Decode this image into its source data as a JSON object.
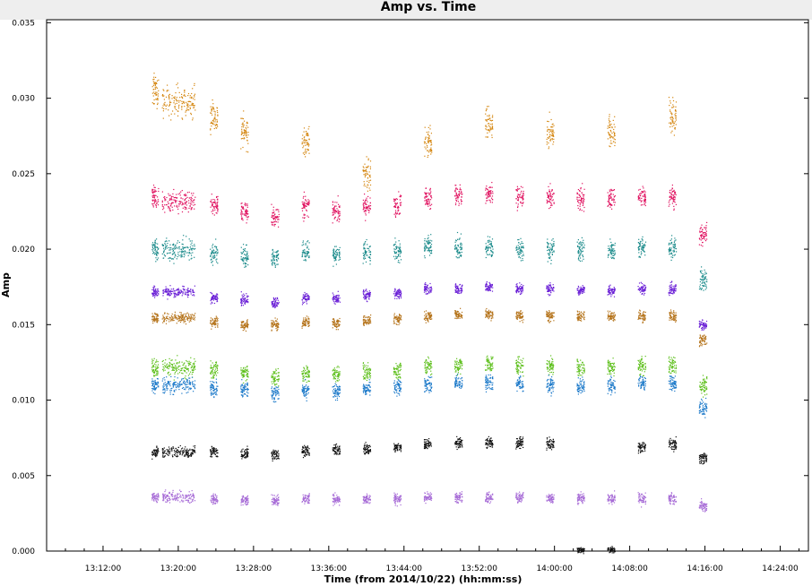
{
  "chart_data": {
    "type": "scatter",
    "title": "Amp vs. Time",
    "xlabel": "Time (from 2014/10/22) (hh:mm:ss)",
    "ylabel": "Amp",
    "ylim": [
      0.0,
      0.0352
    ],
    "xlim_minutes": [
      786.0,
      867.0
    ],
    "x_ticks": [
      {
        "minutes": 792,
        "label": "13:12:00"
      },
      {
        "minutes": 800,
        "label": "13:20:00"
      },
      {
        "minutes": 808,
        "label": "13:28:00"
      },
      {
        "minutes": 816,
        "label": "13:36:00"
      },
      {
        "minutes": 824,
        "label": "13:44:00"
      },
      {
        "minutes": 832,
        "label": "13:52:00"
      },
      {
        "minutes": 840,
        "label": "14:00:00"
      },
      {
        "minutes": 848,
        "label": "14:08:00"
      },
      {
        "minutes": 856,
        "label": "14:16:00"
      },
      {
        "minutes": 864,
        "label": "14:24:00"
      }
    ],
    "y_ticks": [
      {
        "value": 0.0,
        "label": "0.000"
      },
      {
        "value": 0.005,
        "label": "0.005"
      },
      {
        "value": 0.01,
        "label": "0.010"
      },
      {
        "value": 0.015,
        "label": "0.015"
      },
      {
        "value": 0.02,
        "label": "0.020"
      },
      {
        "value": 0.025,
        "label": "0.025"
      },
      {
        "value": 0.03,
        "label": "0.030"
      },
      {
        "value": 0.035,
        "label": "0.035"
      }
    ],
    "scans": [
      {
        "time": "13:17:30",
        "minutes": 797.5,
        "width_min": 0.7
      },
      {
        "time": "13:20:00",
        "minutes": 800.0,
        "width_min": 3.5
      },
      {
        "time": "13:23:45",
        "minutes": 803.75,
        "width_min": 0.8
      },
      {
        "time": "13:27:00",
        "minutes": 807.0,
        "width_min": 0.8
      },
      {
        "time": "13:30:15",
        "minutes": 810.25,
        "width_min": 0.8
      },
      {
        "time": "13:33:30",
        "minutes": 813.5,
        "width_min": 0.8
      },
      {
        "time": "13:36:45",
        "minutes": 816.75,
        "width_min": 0.8
      },
      {
        "time": "13:40:00",
        "minutes": 820.0,
        "width_min": 0.8
      },
      {
        "time": "13:43:15",
        "minutes": 823.25,
        "width_min": 0.8
      },
      {
        "time": "13:46:30",
        "minutes": 826.5,
        "width_min": 0.8
      },
      {
        "time": "13:49:45",
        "minutes": 829.75,
        "width_min": 0.8
      },
      {
        "time": "13:53:00",
        "minutes": 833.0,
        "width_min": 0.8
      },
      {
        "time": "13:56:15",
        "minutes": 836.25,
        "width_min": 0.8
      },
      {
        "time": "13:59:30",
        "minutes": 839.5,
        "width_min": 0.8
      },
      {
        "time": "14:02:45",
        "minutes": 842.75,
        "width_min": 0.8
      },
      {
        "time": "14:06:00",
        "minutes": 846.0,
        "width_min": 0.8
      },
      {
        "time": "14:09:15",
        "minutes": 849.25,
        "width_min": 0.8
      },
      {
        "time": "14:12:30",
        "minutes": 852.5,
        "width_min": 0.8
      },
      {
        "time": "14:15:45",
        "minutes": 855.75,
        "width_min": 0.8
      }
    ],
    "series": [
      {
        "color": "#d4850e",
        "values": [
          0.0305,
          0.0298,
          0.0288,
          0.0278,
          0.0,
          0.0272,
          0.0,
          0.025,
          0.0,
          0.027,
          0.0,
          0.0282,
          0.0,
          0.0278,
          0.0,
          0.0278,
          0.0,
          0.0288,
          0.0
        ],
        "spread": 0.0018
      },
      {
        "color": "#e0115f",
        "values": [
          0.0235,
          0.0232,
          0.023,
          0.0225,
          0.0222,
          0.0228,
          0.0226,
          0.0228,
          0.023,
          0.0235,
          0.0236,
          0.0236,
          0.0235,
          0.0234,
          0.0234,
          0.0234,
          0.0235,
          0.0235,
          0.021
        ],
        "spread": 0.0012
      },
      {
        "color": "#1a8a8a",
        "values": [
          0.02,
          0.02,
          0.0197,
          0.0196,
          0.0195,
          0.0198,
          0.0197,
          0.0198,
          0.0199,
          0.0202,
          0.0201,
          0.0201,
          0.0201,
          0.02,
          0.02,
          0.02,
          0.0201,
          0.0201,
          0.018
        ],
        "spread": 0.0012
      },
      {
        "color": "#6a1fd6",
        "values": [
          0.0172,
          0.0172,
          0.0168,
          0.0167,
          0.0165,
          0.0168,
          0.0167,
          0.017,
          0.0171,
          0.0174,
          0.0174,
          0.0175,
          0.0174,
          0.0174,
          0.0173,
          0.0173,
          0.0174,
          0.0174,
          0.015
        ],
        "spread": 0.0006
      },
      {
        "color": "#b5731a",
        "values": [
          0.0155,
          0.0155,
          0.0152,
          0.015,
          0.015,
          0.0152,
          0.0151,
          0.0153,
          0.0154,
          0.0156,
          0.0157,
          0.0157,
          0.0156,
          0.0156,
          0.0156,
          0.0156,
          0.0156,
          0.0156,
          0.014
        ],
        "spread": 0.0006
      },
      {
        "color": "#5cbf1a",
        "values": [
          0.0122,
          0.0122,
          0.012,
          0.0118,
          0.0116,
          0.0118,
          0.0117,
          0.0119,
          0.012,
          0.0123,
          0.0124,
          0.0124,
          0.0123,
          0.0123,
          0.0122,
          0.0122,
          0.0123,
          0.0123,
          0.011
        ],
        "spread": 0.001
      },
      {
        "color": "#1a78c9",
        "values": [
          0.011,
          0.011,
          0.0108,
          0.0107,
          0.0105,
          0.0107,
          0.0106,
          0.0108,
          0.0109,
          0.0111,
          0.0112,
          0.0112,
          0.0111,
          0.0111,
          0.011,
          0.011,
          0.0111,
          0.0111,
          0.0095
        ],
        "spread": 0.0009
      },
      {
        "color": "#111111",
        "values": [
          0.0066,
          0.0066,
          0.0066,
          0.0065,
          0.0064,
          0.0067,
          0.0067,
          0.0068,
          0.0069,
          0.0071,
          0.0072,
          0.0072,
          0.0072,
          0.0071,
          0.0,
          0.0,
          0.0069,
          0.0071,
          0.0062
        ],
        "spread": 0.0006
      },
      {
        "color": "#a66ad6",
        "values": [
          0.0036,
          0.0036,
          0.0035,
          0.0034,
          0.0034,
          0.0035,
          0.0035,
          0.0035,
          0.0035,
          0.0036,
          0.0036,
          0.0036,
          0.0036,
          0.0035,
          0.0035,
          0.0035,
          0.0035,
          0.0035,
          0.003
        ],
        "spread": 0.0006
      },
      {
        "color": "#111111",
        "values": [
          0.0,
          0.0,
          0.0,
          0.0,
          0.0,
          0.0,
          0.0,
          0.0,
          0.0,
          0.0,
          0.0,
          0.0,
          0.0,
          0.0,
          0.0001,
          0.0001,
          0.0,
          0.0,
          0.0
        ],
        "spread": 0.0003
      }
    ]
  }
}
